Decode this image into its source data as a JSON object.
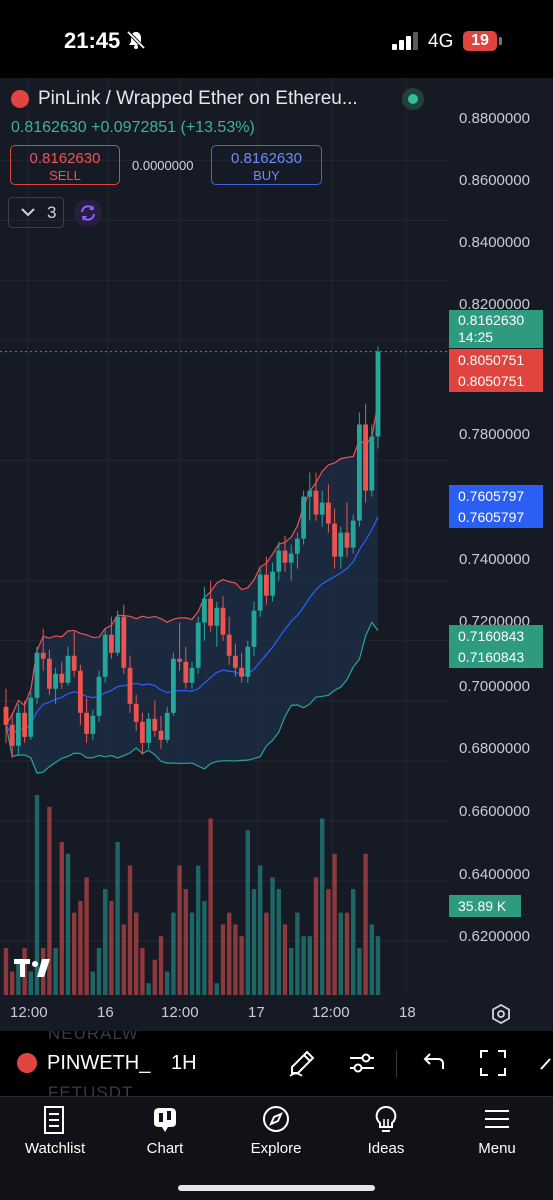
{
  "status_bar": {
    "time": "21:45",
    "network": "4G",
    "battery": "19"
  },
  "header": {
    "symbol_title": "PinLink / Wrapped Ether on Ethereu...",
    "last_price": "0.8162630",
    "change_text": "+0.0972851 (+13.53%)",
    "sell": {
      "price": "0.8162630",
      "label": "SELL"
    },
    "spread": "0.0000000",
    "buy": {
      "price": "0.8162630",
      "label": "BUY"
    },
    "indicators_count": "3"
  },
  "price_axis": {
    "ticks": [
      "0.8800000",
      "0.8600000",
      "0.8400000",
      "0.8200000",
      "0.7800000",
      "0.7400000",
      "0.7200000",
      "0.7000000",
      "0.6800000",
      "0.6600000",
      "0.6400000",
      "0.6200000"
    ]
  },
  "price_labels": {
    "last": {
      "value": "0.8162630",
      "countdown": "14:25",
      "color": "#26a69a"
    },
    "bb_upper": {
      "value": "0.8050751",
      "color": "#ef5350"
    },
    "bb_upper_2": {
      "value": "0.8050751",
      "color": "#ef5350"
    },
    "bb_basis": {
      "value": "0.7605797",
      "color": "#2962ff"
    },
    "bb_basis_2": {
      "value": "0.7605797",
      "color": "#2962ff"
    },
    "bb_lower": {
      "value": "0.7160843",
      "color": "#26a69a"
    },
    "bb_lower_2": {
      "value": "0.7160843",
      "color": "#26a69a"
    },
    "volume": {
      "value": "35.89 K",
      "color": "#26a69a"
    }
  },
  "time_axis": {
    "labels": [
      "12:00",
      "16",
      "12:00",
      "17",
      "12:00",
      "18"
    ]
  },
  "toolbar": {
    "symbol": "PINWETH_",
    "interval": "1H",
    "ghost_above": "NEURALW",
    "ghost_below": "FETUSDT"
  },
  "tabs": [
    {
      "label": "Watchlist",
      "icon": "watchlist-icon"
    },
    {
      "label": "Chart",
      "icon": "chart-icon"
    },
    {
      "label": "Explore",
      "icon": "compass-icon"
    },
    {
      "label": "Ideas",
      "icon": "lightbulb-icon"
    },
    {
      "label": "Menu",
      "icon": "menu-icon"
    }
  ],
  "colors": {
    "up": "#26a69a",
    "down": "#ef5350",
    "basis": "#2962ff",
    "background": "#161a25"
  },
  "chart_data": {
    "type": "candlestick",
    "x_labels": [
      "12:00",
      "16",
      "12:00",
      "17",
      "12:00",
      "18"
    ],
    "y_axis_ticks": [
      0.88,
      0.86,
      0.84,
      0.82,
      0.78,
      0.74,
      0.72,
      0.7,
      0.68,
      0.66,
      0.64,
      0.62
    ],
    "ylim": [
      0.6037,
      0.8934
    ],
    "last_price": 0.816263,
    "indicators": {
      "bollinger_upper": 0.8050751,
      "bollinger_basis": 0.7605797,
      "bollinger_lower": 0.7160843
    },
    "volume_last": "35.89 K",
    "candles": [
      [
        0.698,
        0.704,
        0.686,
        0.692
      ],
      [
        0.692,
        0.696,
        0.681,
        0.685
      ],
      [
        0.685,
        0.699,
        0.682,
        0.696
      ],
      [
        0.696,
        0.7,
        0.686,
        0.688
      ],
      [
        0.688,
        0.703,
        0.687,
        0.701
      ],
      [
        0.701,
        0.718,
        0.699,
        0.716
      ],
      [
        0.716,
        0.724,
        0.71,
        0.714
      ],
      [
        0.714,
        0.717,
        0.702,
        0.704
      ],
      [
        0.704,
        0.711,
        0.699,
        0.709
      ],
      [
        0.709,
        0.713,
        0.704,
        0.706
      ],
      [
        0.706,
        0.718,
        0.705,
        0.715
      ],
      [
        0.715,
        0.723,
        0.708,
        0.71
      ],
      [
        0.71,
        0.712,
        0.692,
        0.696
      ],
      [
        0.696,
        0.701,
        0.686,
        0.689
      ],
      [
        0.689,
        0.697,
        0.687,
        0.695
      ],
      [
        0.695,
        0.71,
        0.693,
        0.708
      ],
      [
        0.708,
        0.724,
        0.706,
        0.722
      ],
      [
        0.722,
        0.728,
        0.714,
        0.716
      ],
      [
        0.716,
        0.73,
        0.715,
        0.728
      ],
      [
        0.728,
        0.732,
        0.709,
        0.711
      ],
      [
        0.711,
        0.715,
        0.696,
        0.699
      ],
      [
        0.699,
        0.702,
        0.69,
        0.693
      ],
      [
        0.693,
        0.696,
        0.682,
        0.686
      ],
      [
        0.686,
        0.696,
        0.684,
        0.694
      ],
      [
        0.694,
        0.7,
        0.688,
        0.69
      ],
      [
        0.69,
        0.695,
        0.684,
        0.687
      ],
      [
        0.687,
        0.698,
        0.686,
        0.696
      ],
      [
        0.696,
        0.716,
        0.695,
        0.714
      ],
      [
        0.714,
        0.726,
        0.71,
        0.713
      ],
      [
        0.713,
        0.718,
        0.704,
        0.706
      ],
      [
        0.706,
        0.713,
        0.704,
        0.711
      ],
      [
        0.711,
        0.728,
        0.709,
        0.726
      ],
      [
        0.726,
        0.738,
        0.72,
        0.734
      ],
      [
        0.734,
        0.74,
        0.723,
        0.725
      ],
      [
        0.725,
        0.733,
        0.718,
        0.731
      ],
      [
        0.731,
        0.735,
        0.72,
        0.722
      ],
      [
        0.722,
        0.728,
        0.712,
        0.715
      ],
      [
        0.715,
        0.719,
        0.708,
        0.711
      ],
      [
        0.711,
        0.716,
        0.706,
        0.708
      ],
      [
        0.708,
        0.72,
        0.706,
        0.718
      ],
      [
        0.718,
        0.733,
        0.715,
        0.73
      ],
      [
        0.73,
        0.744,
        0.728,
        0.742
      ],
      [
        0.742,
        0.748,
        0.732,
        0.735
      ],
      [
        0.735,
        0.746,
        0.733,
        0.743
      ],
      [
        0.743,
        0.753,
        0.74,
        0.75
      ],
      [
        0.75,
        0.755,
        0.743,
        0.746
      ],
      [
        0.746,
        0.752,
        0.74,
        0.749
      ],
      [
        0.749,
        0.756,
        0.744,
        0.754
      ],
      [
        0.754,
        0.77,
        0.752,
        0.768
      ],
      [
        0.768,
        0.776,
        0.76,
        0.77
      ],
      [
        0.77,
        0.776,
        0.76,
        0.762
      ],
      [
        0.762,
        0.77,
        0.758,
        0.766
      ],
      [
        0.766,
        0.772,
        0.756,
        0.759
      ],
      [
        0.759,
        0.764,
        0.744,
        0.748
      ],
      [
        0.748,
        0.758,
        0.744,
        0.756
      ],
      [
        0.756,
        0.766,
        0.748,
        0.751
      ],
      [
        0.751,
        0.762,
        0.749,
        0.76
      ],
      [
        0.76,
        0.796,
        0.758,
        0.792
      ],
      [
        0.792,
        0.799,
        0.766,
        0.77
      ],
      [
        0.77,
        0.792,
        0.768,
        0.788
      ],
      [
        0.788,
        0.818,
        0.784,
        0.816263
      ]
    ],
    "volumes": [
      4,
      2,
      3,
      4,
      2,
      17,
      4,
      16,
      4,
      13,
      12,
      7,
      8,
      10,
      2,
      4,
      9,
      8,
      13,
      6,
      11,
      7,
      4,
      1,
      3,
      5,
      2,
      7,
      11,
      9,
      7,
      11,
      8,
      15,
      1,
      6,
      7,
      6,
      5,
      14,
      9,
      11,
      7,
      10,
      9,
      6,
      4,
      7,
      5,
      5,
      10,
      15,
      9,
      12,
      7,
      7,
      9,
      4,
      12,
      6,
      5
    ]
  }
}
